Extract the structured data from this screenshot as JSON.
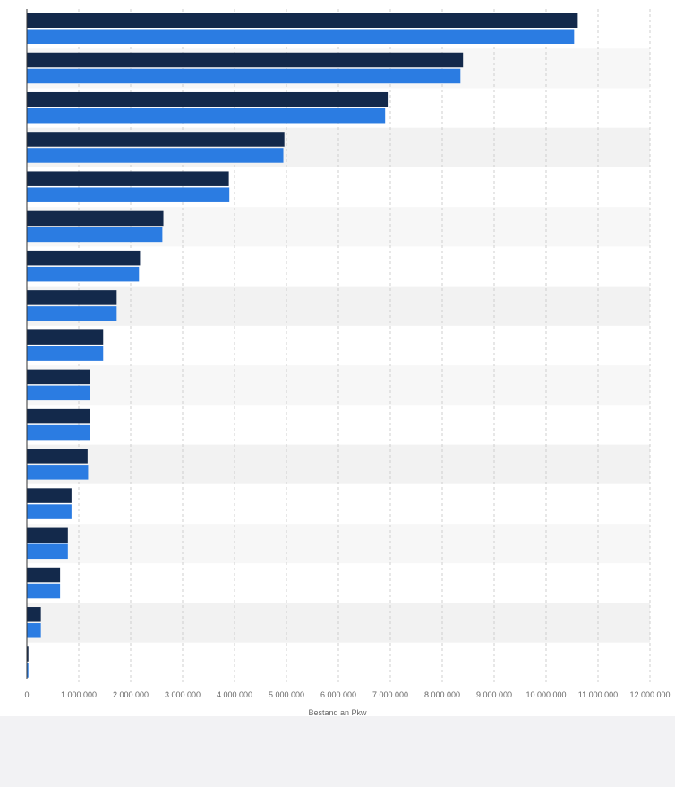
{
  "chart_data": {
    "type": "bar",
    "orientation": "horizontal",
    "title": "",
    "xlabel": "Bestand an Pkw",
    "ylabel": "",
    "xlim": [
      0,
      12000000
    ],
    "x_ticks": [
      0,
      1000000,
      2000000,
      3000000,
      4000000,
      5000000,
      6000000,
      7000000,
      8000000,
      9000000,
      10000000,
      11000000,
      12000000
    ],
    "x_tick_labels": [
      "0",
      "1.000.000",
      "2.000.000",
      "3.000.000",
      "4.000.000",
      "5.000.000",
      "6.000.000",
      "7.000.000",
      "8.000.000",
      "9.000.000",
      "10.000.000",
      "11.000.000",
      "12.000.000"
    ],
    "grid": true,
    "categories": [
      "",
      "",
      "",
      "",
      "",
      "",
      "",
      "",
      "",
      "",
      "",
      "",
      "",
      "",
      "",
      "",
      ""
    ],
    "series": [
      {
        "color": "#13294b",
        "values": [
          10610000,
          8400000,
          6950000,
          4960000,
          3890000,
          2630000,
          2180000,
          1730000,
          1470000,
          1210000,
          1210000,
          1170000,
          860000,
          790000,
          640000,
          270000,
          30000
        ]
      },
      {
        "color": "#2b7ce2",
        "values": [
          10540000,
          8350000,
          6900000,
          4940000,
          3900000,
          2610000,
          2160000,
          1730000,
          1470000,
          1220000,
          1210000,
          1180000,
          860000,
          790000,
          640000,
          270000,
          30000
        ]
      }
    ]
  }
}
